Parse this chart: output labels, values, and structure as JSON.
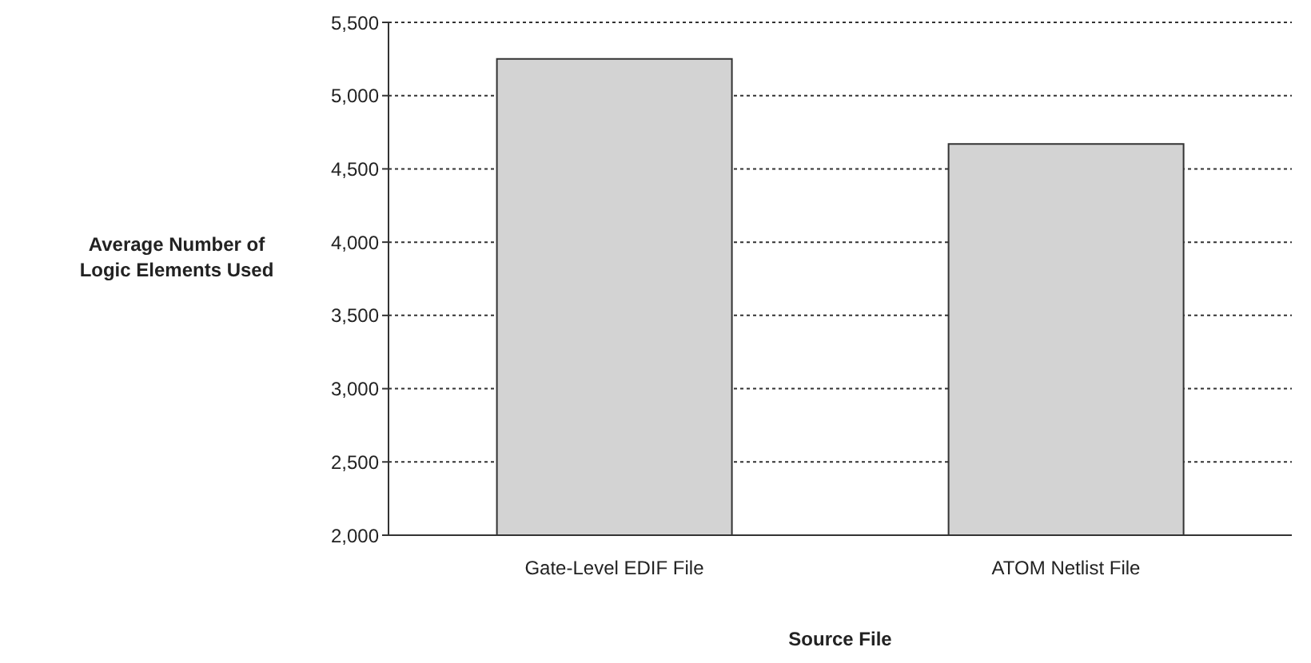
{
  "chart_data": {
    "type": "bar",
    "xlabel": "Source File",
    "ylabel": "Average Number of Logic Elements Used",
    "categories": [
      "Gate-Level EDIF File",
      "ATOM Netlist File"
    ],
    "values": [
      5250,
      4670
    ],
    "color": "#d3d3d3",
    "ylim": [
      2000,
      5500
    ],
    "yticks": [
      {
        "value": 2000,
        "label": "2,000"
      },
      {
        "value": 2500,
        "label": "2,500"
      },
      {
        "value": 3000,
        "label": "3,000"
      },
      {
        "value": 3500,
        "label": "3,500"
      },
      {
        "value": 4000,
        "label": "4,000"
      },
      {
        "value": 4500,
        "label": "4,500"
      },
      {
        "value": 5000,
        "label": "5,000"
      },
      {
        "value": 5500,
        "label": "5,500"
      }
    ],
    "grid": "y"
  }
}
